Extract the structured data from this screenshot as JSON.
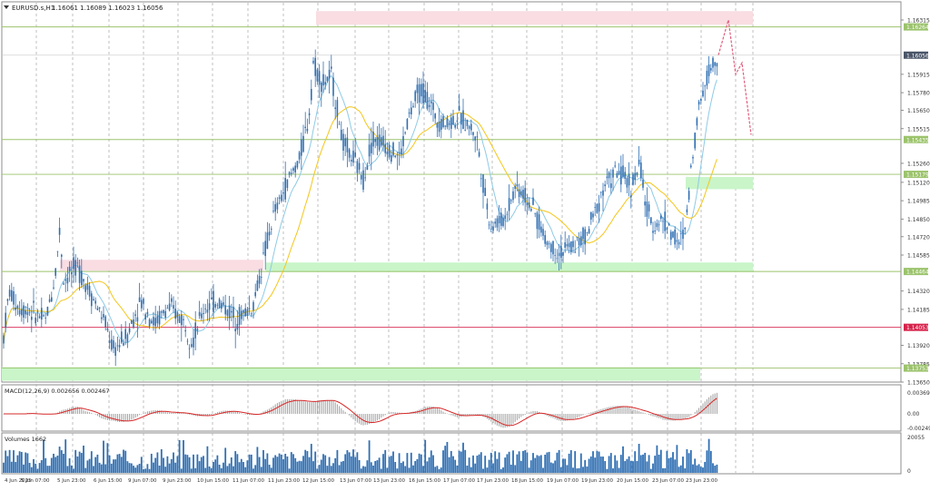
{
  "header": {
    "symbol": "EURUSD.s,H1",
    "ohlc": "1.16061 1.16089 1.16023 1.16056"
  },
  "price_axis": {
    "ticks": [
      "1.16315",
      "1.15915",
      "1.15780",
      "1.15650",
      "1.15515",
      "1.15260",
      "1.15120",
      "1.14985",
      "1.14850",
      "1.14720",
      "1.14585",
      "1.14320",
      "1.14185",
      "1.13920",
      "1.13785",
      "1.13650"
    ],
    "levels": [
      {
        "label": "1.16264",
        "value": 1.16264,
        "kind": "support",
        "color": "#9bc36b"
      },
      {
        "label": "1.15435",
        "value": 1.15435,
        "kind": "support",
        "color": "#9bc36b"
      },
      {
        "label": "1.15179",
        "value": 1.15179,
        "kind": "support",
        "color": "#9bc36b"
      },
      {
        "label": "1.14464",
        "value": 1.14464,
        "kind": "support",
        "color": "#9bc36b"
      },
      {
        "label": "1.14053",
        "value": 1.14053,
        "kind": "resistance",
        "color": "#d6224b"
      },
      {
        "label": "1.13753",
        "value": 1.13753,
        "kind": "support",
        "color": "#9bc36b"
      }
    ],
    "current": {
      "label": "1.16056",
      "value": 1.16056
    }
  },
  "zones": [
    {
      "kind": "supply",
      "from": 1.1628,
      "to": 1.1638,
      "start_bar": 348,
      "end_bar": 829
    },
    {
      "kind": "supply",
      "from": 1.1447,
      "to": 1.1455,
      "start_bar": 66,
      "end_bar": 290
    },
    {
      "kind": "demand",
      "from": 1.1507,
      "to": 1.1516,
      "start_bar": 755,
      "end_bar": 829
    },
    {
      "kind": "demand",
      "from": 1.1446,
      "to": 1.1453,
      "start_bar": 293,
      "end_bar": 829
    },
    {
      "kind": "demand",
      "from": 1.1366,
      "to": 1.1376,
      "start_bar": 2,
      "end_bar": 771
    }
  ],
  "x_axis": {
    "labels": [
      "4 Jun 2025",
      "5 Jun 07:00",
      "5 Jun 23:00",
      "6 Jun 15:00",
      "9 Jun 07:00",
      "9 Jun 23:00",
      "10 Jun 15:00",
      "11 Jun 07:00",
      "11 Jun 23:00",
      "12 Jun 15:00",
      "13 Jun 07:00",
      "13 Jun 23:00",
      "16 Jun 15:00",
      "17 Jun 07:00",
      "17 Jun 23:00",
      "18 Jun 15:00",
      "19 Jun 07:00",
      "19 Jun 23:00",
      "20 Jun 15:00",
      "23 Jun 07:00",
      "23 Jun 23:00"
    ]
  },
  "macd": {
    "label": "MACD(12,26,9) 0.002656 0.002467",
    "ticks": [
      "0.003692",
      "0.00",
      "-0.002494"
    ]
  },
  "volumes": {
    "label": "Volumes 1662",
    "ticks": [
      "20055",
      "0"
    ]
  },
  "chart_data": {
    "type": "candlestick",
    "title": "EURUSD.s,H1",
    "ylim": [
      1.1365,
      1.1637
    ],
    "forecast": [
      [
        1.16056,
        1.16315
      ],
      [
        1.15915,
        1.16
      ],
      [
        1.1547
      ]
    ],
    "colors": {
      "candles": "#2f6fb3",
      "ma_fast": "#8ecae6",
      "ma_slow": "#f5c518",
      "signal": "#d62828",
      "forecast": "#e0607e"
    }
  }
}
